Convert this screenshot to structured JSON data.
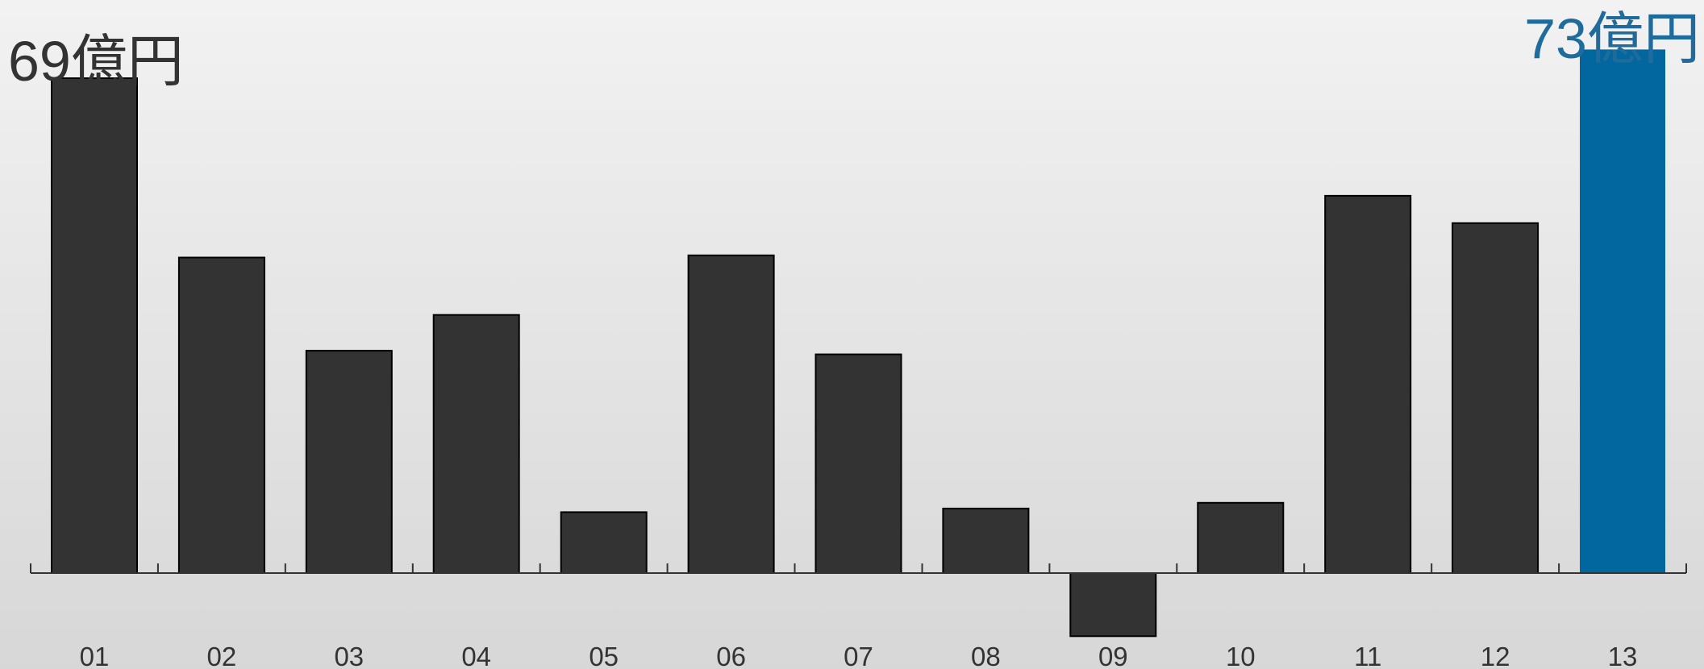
{
  "chart_data": {
    "type": "bar",
    "categories": [
      "01",
      "02",
      "03",
      "04",
      "05",
      "06",
      "07",
      "08",
      "09",
      "10",
      "11",
      "12",
      "13"
    ],
    "values": [
      69,
      44,
      31,
      36,
      8.5,
      44.3,
      30.5,
      9,
      -8.8,
      9.8,
      52.6,
      48.8,
      73
    ],
    "ylim": [
      -9,
      73
    ],
    "annotations": [
      {
        "category": "01",
        "text": "69億円"
      },
      {
        "category": "13",
        "text": "73億円"
      }
    ],
    "title": "",
    "xlabel": "",
    "ylabel": "",
    "grid": false,
    "colors": {
      "bar": "#333333",
      "highlight": "#01679e",
      "axis": "#333333",
      "text": "#333333",
      "highlight_text": "#1f6b9c"
    },
    "highlight_category": "13"
  }
}
